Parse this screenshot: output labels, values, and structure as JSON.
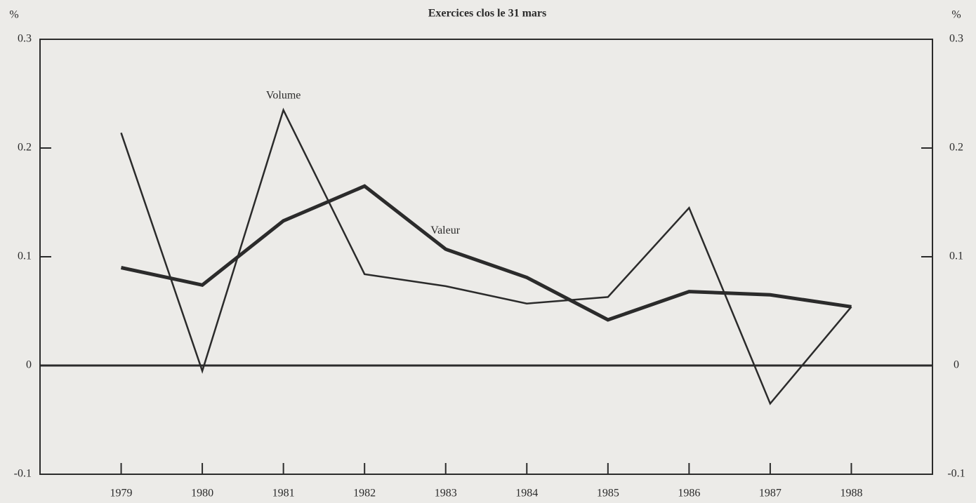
{
  "chart_data": {
    "type": "line",
    "title": "Exercices clos le 31 mars",
    "y_label": "%",
    "y2_label": "%",
    "categories": [
      "1979",
      "1980",
      "1981",
      "1982",
      "1983",
      "1984",
      "1985",
      "1986",
      "1987",
      "1988"
    ],
    "series": [
      {
        "name": "Volume",
        "color": "#2b2b2b",
        "values": [
          0.214,
          -0.005,
          0.235,
          0.084,
          0.073,
          0.057,
          0.063,
          0.145,
          -0.035,
          0.054
        ]
      },
      {
        "name": "Valeur",
        "color": "#2b2b2b",
        "values": [
          0.09,
          0.074,
          0.133,
          0.165,
          0.107,
          0.081,
          0.042,
          0.068,
          0.065,
          0.054
        ]
      }
    ],
    "ylim": [
      -0.1,
      0.3
    ],
    "yticks": [
      -0.1,
      0,
      0.1,
      0.2,
      0.3
    ],
    "y2lim": [
      -0.1,
      0.3
    ],
    "y2ticks": [
      -0.1,
      0,
      0.1,
      0.2,
      0.3
    ],
    "grid": false
  }
}
